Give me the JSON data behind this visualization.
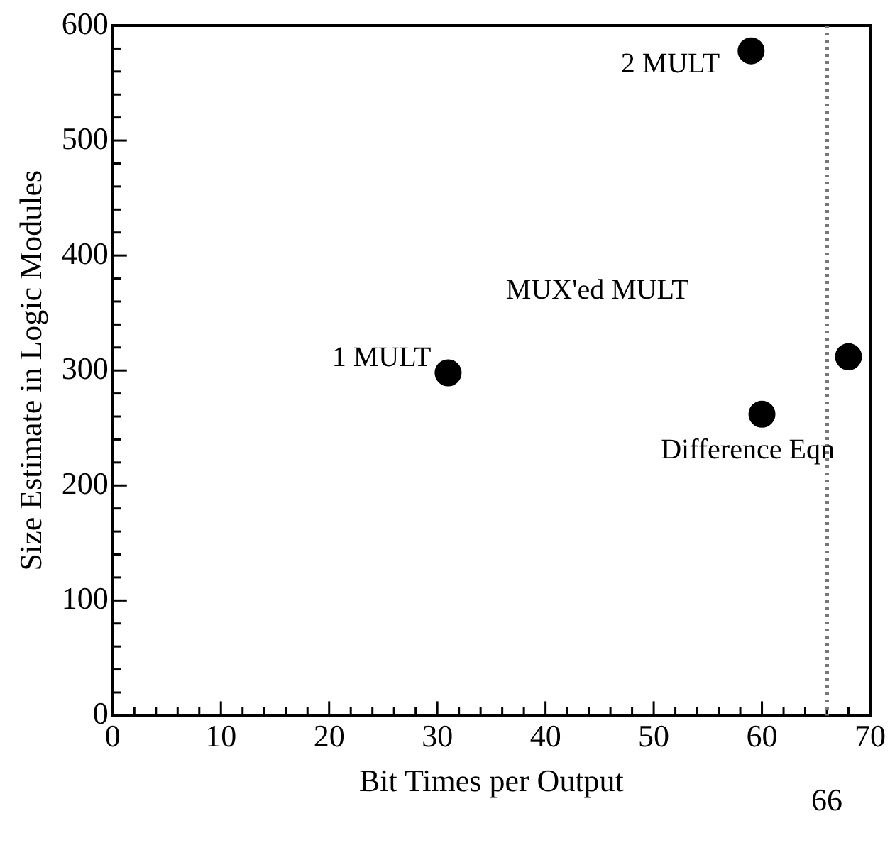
{
  "chart_data": {
    "type": "scatter",
    "xlabel": "Bit Times per Output",
    "ylabel": "Size Estimate in Logic Modules",
    "x": [
      31,
      59,
      60,
      68
    ],
    "values": [
      298,
      578,
      262,
      312
    ],
    "color": "#000000",
    "marker": "circle",
    "xlim": [
      0,
      70
    ],
    "ylim": [
      0,
      600
    ],
    "xticks": [
      0,
      {
        "value": 2,
        "label": null
      },
      {
        "value": 4,
        "label": null
      },
      {
        "value": 6,
        "label": null
      },
      {
        "value": 8,
        "label": null
      },
      10,
      {
        "value": 12,
        "label": null
      },
      {
        "value": 14,
        "label": null
      },
      {
        "value": 16,
        "label": null
      },
      {
        "value": 18,
        "label": null
      },
      20,
      {
        "value": 22,
        "label": null
      },
      {
        "value": 24,
        "label": null
      },
      {
        "value": 26,
        "label": null
      },
      {
        "value": 28,
        "label": null
      },
      30,
      {
        "value": 32,
        "label": null
      },
      {
        "value": 34,
        "label": null
      },
      {
        "value": 36,
        "label": null
      },
      {
        "value": 38,
        "label": null
      },
      40,
      {
        "value": 42,
        "label": null
      },
      {
        "value": 44,
        "label": null
      },
      {
        "value": 46,
        "label": null
      },
      {
        "value": 48,
        "label": null
      },
      50,
      {
        "value": 52,
        "label": null
      },
      {
        "value": 54,
        "label": null
      },
      {
        "value": 56,
        "label": null
      },
      {
        "value": 58,
        "label": null
      },
      60,
      {
        "value": 62,
        "label": null
      },
      {
        "value": 64,
        "label": null
      },
      {
        "value": 66,
        "label": null
      },
      {
        "value": 68,
        "label": null
      },
      70
    ],
    "yticks": [
      0,
      {
        "value": 20,
        "label": null
      },
      {
        "value": 40,
        "label": null
      },
      {
        "value": 60,
        "label": null
      },
      {
        "value": 80,
        "label": null
      },
      100,
      {
        "value": 120,
        "label": null
      },
      {
        "value": 140,
        "label": null
      },
      {
        "value": 160,
        "label": null
      },
      {
        "value": 180,
        "label": null
      },
      200,
      {
        "value": 220,
        "label": null
      },
      {
        "value": 240,
        "label": null
      },
      {
        "value": 260,
        "label": null
      },
      {
        "value": 280,
        "label": null
      },
      300,
      {
        "value": 320,
        "label": null
      },
      {
        "value": 340,
        "label": null
      },
      {
        "value": 360,
        "label": null
      },
      {
        "value": 380,
        "label": null
      },
      400,
      {
        "value": 420,
        "label": null
      },
      {
        "value": 440,
        "label": null
      },
      {
        "value": 460,
        "label": null
      },
      {
        "value": 480,
        "label": null
      },
      500,
      {
        "value": 520,
        "label": null
      },
      {
        "value": 540,
        "label": null
      },
      {
        "value": 560,
        "label": null
      },
      {
        "value": 580,
        "label": null
      },
      600
    ],
    "ref_lines": [
      {
        "axis": "x",
        "value": 66,
        "label": "66",
        "color": "#777777",
        "line_style": "dotted"
      }
    ],
    "annotations": [
      {
        "text": "1 MULT",
        "x": 31,
        "y": 298
      },
      {
        "text": "2 MULT",
        "x": 59,
        "y": 578
      },
      {
        "text": "Difference Eqn",
        "x": 60,
        "y": 262
      },
      "MUX'ed MULT"
    ],
    "grid": false,
    "legend": false
  }
}
